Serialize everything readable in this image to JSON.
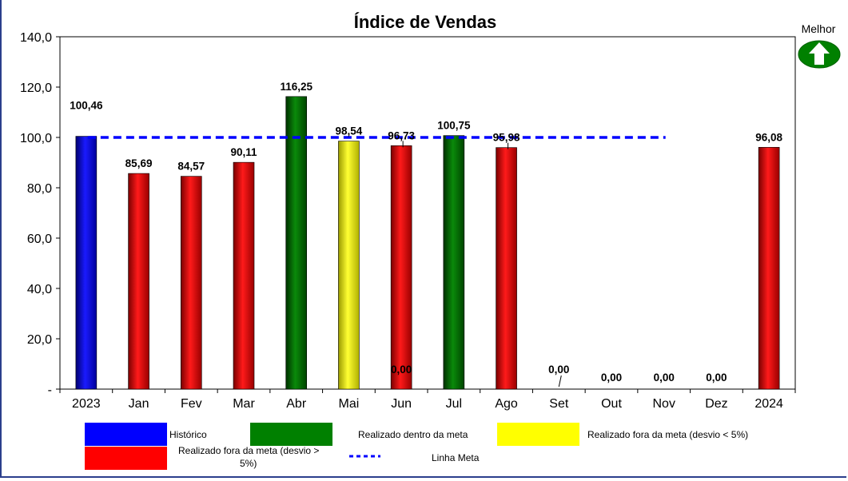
{
  "chart_data": {
    "type": "bar",
    "title": "Índice de Vendas",
    "categories": [
      "2023",
      "Jan",
      "Fev",
      "Mar",
      "Abr",
      "Mai",
      "Jun",
      "Jul",
      "Ago",
      "Set",
      "Out",
      "Nov",
      "Dez",
      "2024"
    ],
    "values": [
      100.46,
      85.69,
      84.57,
      90.11,
      116.25,
      98.54,
      96.73,
      100.75,
      95.98,
      0,
      0,
      0,
      0,
      96.08
    ],
    "data_labels": [
      "100,46",
      "85,69",
      "84,57",
      "90,11",
      "116,25",
      "98,54",
      "96,73",
      "100,75",
      "95,98",
      "0,00",
      "0,00",
      "0,00",
      "0,00",
      "96,08"
    ],
    "bar_status": [
      "historico",
      "fora_maior",
      "fora_maior",
      "fora_maior",
      "dentro",
      "fora_menor",
      "fora_maior",
      "dentro",
      "fora_maior",
      "none",
      "none",
      "none",
      "none",
      "fora_maior"
    ],
    "extra_label": {
      "text": "0,00",
      "category": "Jun"
    },
    "meta_line": {
      "value": 100,
      "from": "2023",
      "to": "Nov"
    },
    "ylim": [
      0,
      140
    ],
    "y_ticks": [
      "-",
      "20,0",
      "40,0",
      "60,0",
      "80,0",
      "100,0",
      "120,0",
      "140,0"
    ],
    "xlabel": "",
    "ylabel": "",
    "grid": false,
    "legend_position": "bottom",
    "legend": [
      {
        "key": "historico",
        "label": "Histórico"
      },
      {
        "key": "dentro",
        "label": "Realizado dentro da meta"
      },
      {
        "key": "fora_menor",
        "label": "Realizado fora da meta (desvio < 5%)"
      },
      {
        "key": "fora_maior",
        "label_lines": [
          "Realizado fora da meta (desvio >",
          "5%)"
        ]
      },
      {
        "key": "meta",
        "label": "Linha Meta"
      }
    ],
    "colors": {
      "historico": "#0000ff",
      "dentro": "#008000",
      "fora_menor": "#ffff00",
      "fora_maior": "#ff0000",
      "meta": "#0000ff",
      "better_arrow": "#008000"
    }
  },
  "indicator": {
    "label": "Melhor",
    "direction": "up",
    "icon": "arrow-up-icon"
  }
}
